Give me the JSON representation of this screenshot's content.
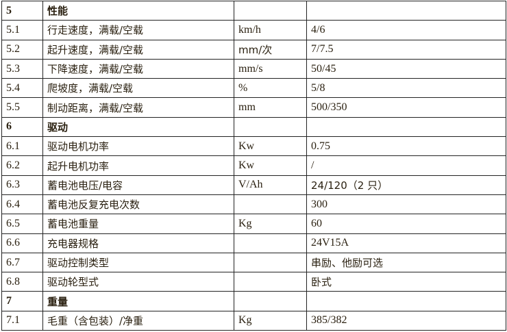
{
  "rows": [
    {
      "no": "5",
      "item": "性能",
      "unit": "",
      "value": "",
      "section": true
    },
    {
      "no": "5.1",
      "item": "行走速度，满载/空载",
      "unit": "km/h",
      "value": "4/6"
    },
    {
      "no": "5.2",
      "item": "起升速度，满载/空载",
      "unit": "mm/次",
      "value": "7/7.5"
    },
    {
      "no": "5.3",
      "item": "下降速度，满载/空载",
      "unit": "mm/s",
      "value": "50/45"
    },
    {
      "no": "5.4",
      "item": "爬坡度，满载/空载",
      "unit": "%",
      "value": "5/8"
    },
    {
      "no": "5.5",
      "item": "制动距离，满载/空载",
      "unit": "mm",
      "value": "500/350"
    },
    {
      "no": "6",
      "item": "驱动",
      "unit": "",
      "value": "",
      "section": true
    },
    {
      "no": "6.1",
      "item": "驱动电机功率",
      "unit": "Kw",
      "value": "0.75"
    },
    {
      "no": "6.2",
      "item": "起升电机功率",
      "unit": "Kw",
      "value": "/"
    },
    {
      "no": "6.3",
      "item": "蓄电池电压/电容",
      "unit": "V/Ah",
      "value": "24/120（2 只）"
    },
    {
      "no": "6.4",
      "item": "蓄电池反复充电次数",
      "unit": "",
      "value": "300"
    },
    {
      "no": "6.5",
      "item": "蓄电池重量",
      "unit": "Kg",
      "value": "60"
    },
    {
      "no": "6.6",
      "item": "充电器规格",
      "unit": "",
      "value": "24V15A"
    },
    {
      "no": "6.7",
      "item": "驱动控制类型",
      "unit": "",
      "value": "串励、他励可选"
    },
    {
      "no": "6.8",
      "item": "驱动轮型式",
      "unit": "",
      "value": "卧式"
    },
    {
      "no": "7",
      "item": "重量",
      "unit": "",
      "value": "",
      "section": true
    },
    {
      "no": "7.1",
      "item": "毛重（含包装）/净重",
      "unit": "Kg",
      "value": "385/382"
    }
  ]
}
